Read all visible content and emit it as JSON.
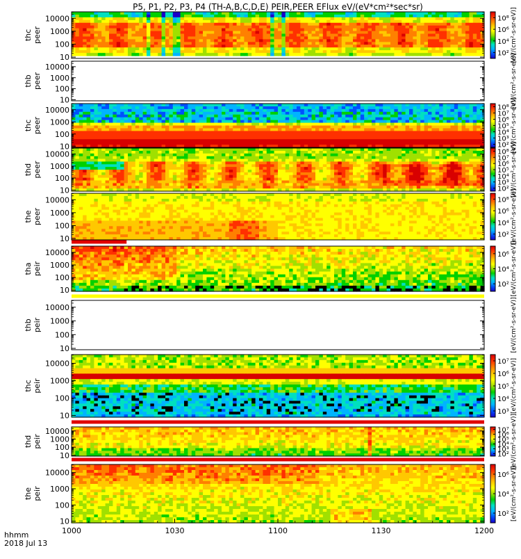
{
  "title": "P5, P1, P2, P3, P4 (TH-A,B,C,D,E) PEIR,PEER EFlux eV/(eV*cm²*sec*sr)",
  "footer": {
    "line1": "hhmm",
    "line2": "2018 Jul 13"
  },
  "colors": {
    "frame": "#000000",
    "flag_red": "#e00000",
    "flag_yellow": "#ffff00"
  },
  "palette": [
    "#1a00c8",
    "#0050ff",
    "#00b4ff",
    "#00e0c0",
    "#00d000",
    "#a0e000",
    "#ffff00",
    "#ffc800",
    "#ff8000",
    "#ff3000",
    "#d80000"
  ],
  "chart_data": {
    "type": "heatmap",
    "x_ticks": [
      "1000",
      "1030",
      "1100",
      "1130",
      "1200"
    ],
    "x_range": [
      "10:00",
      "12:00"
    ],
    "y_ticks": [
      "10",
      "100",
      "1000",
      "10000"
    ],
    "y_scale": "log",
    "panels": [
      {
        "name": "thc-peer",
        "ylabel": [
          "thc",
          "peer"
        ],
        "cbar_label": "[eV/(cm²-s-sr-eV)]",
        "cbar_ticks": [
          "10²",
          "10⁴",
          "10⁶",
          "10⁸"
        ],
        "pattern": "peer-active",
        "empty": false,
        "bottom_flag": null
      },
      {
        "name": "thb-peer",
        "ylabel": [
          "thb",
          "peer"
        ],
        "cbar_label": "[eV/(cm²-s-sr-eV)]",
        "cbar_ticks": [],
        "pattern": "empty",
        "empty": true,
        "bottom_flag": null
      },
      {
        "name": "thc2-peer",
        "ylabel": [
          "thc",
          "peer"
        ],
        "cbar_label": "[eV/(cm²-s-sr-eV)]",
        "cbar_ticks": [
          "10²",
          "10³",
          "10⁴",
          "10⁵",
          "10⁶",
          "10⁷",
          "10⁸"
        ],
        "pattern": "banded-peer",
        "empty": false,
        "bottom_flag": null
      },
      {
        "name": "thd-peer",
        "ylabel": [
          "thd",
          "peer"
        ],
        "cbar_label": "[eV/(cm²-s-sr-eV)]",
        "cbar_ticks": [
          "10²",
          "10³",
          "10⁴",
          "10⁵",
          "10⁶",
          "10⁷",
          "10⁸"
        ],
        "pattern": "peer-active-2",
        "empty": false,
        "bottom_flag": null
      },
      {
        "name": "the-peer",
        "ylabel": [
          "the",
          "peer"
        ],
        "cbar_label": "[eV/(cm²-s-sr-eV)]",
        "cbar_ticks": [
          "10²",
          "10⁴",
          "10⁶",
          "10⁸"
        ],
        "pattern": "peer-quiet",
        "empty": false,
        "bottom_flag": {
          "color": "red",
          "x_end": "10:16"
        }
      },
      {
        "name": "tha-peir",
        "ylabel": [
          "tha",
          "peir"
        ],
        "cbar_label": "[eV/(cm²-s-sr-eV)]",
        "cbar_ticks": [
          "10²",
          "10⁴",
          "10⁶"
        ],
        "pattern": "peir-speckle",
        "empty": false,
        "bottom_flag": {
          "color": "yellow",
          "x_end": "12:00"
        }
      },
      {
        "name": "thb-peir",
        "ylabel": [
          "thb",
          "peir"
        ],
        "cbar_label": "[eV/(cm²-s-sr-eV)]",
        "cbar_ticks": [],
        "pattern": "empty",
        "empty": true,
        "bottom_flag": null
      },
      {
        "name": "thc-peir",
        "ylabel": [
          "thc",
          "peir"
        ],
        "cbar_label": "[eV/(cm²-s-sr-eV)]",
        "cbar_ticks": [
          "10³",
          "10⁴",
          "10⁵",
          "10⁶",
          "10⁷"
        ],
        "pattern": "banded-peir",
        "empty": false,
        "bottom_flag": {
          "color": "red",
          "x_end": "12:00"
        }
      },
      {
        "name": "thd-peir",
        "ylabel": [
          "thd",
          "peir"
        ],
        "cbar_label": "[eV/(cm²-s-sr-eV)]",
        "cbar_ticks": [
          "10²",
          "10³",
          "10⁴",
          "10⁵",
          "10⁶",
          "10⁷"
        ],
        "pattern": "peir-flat",
        "empty": false,
        "bottom_flag": {
          "color": "red",
          "x_end": "12:00"
        }
      },
      {
        "name": "the-peir",
        "ylabel": [
          "the",
          "peir"
        ],
        "cbar_label": "[eV/(cm²-s-sr-eV)]",
        "cbar_ticks": [
          "10²",
          "10⁴",
          "10⁶"
        ],
        "pattern": "peir-flat-2",
        "empty": false,
        "bottom_flag": null
      }
    ]
  }
}
